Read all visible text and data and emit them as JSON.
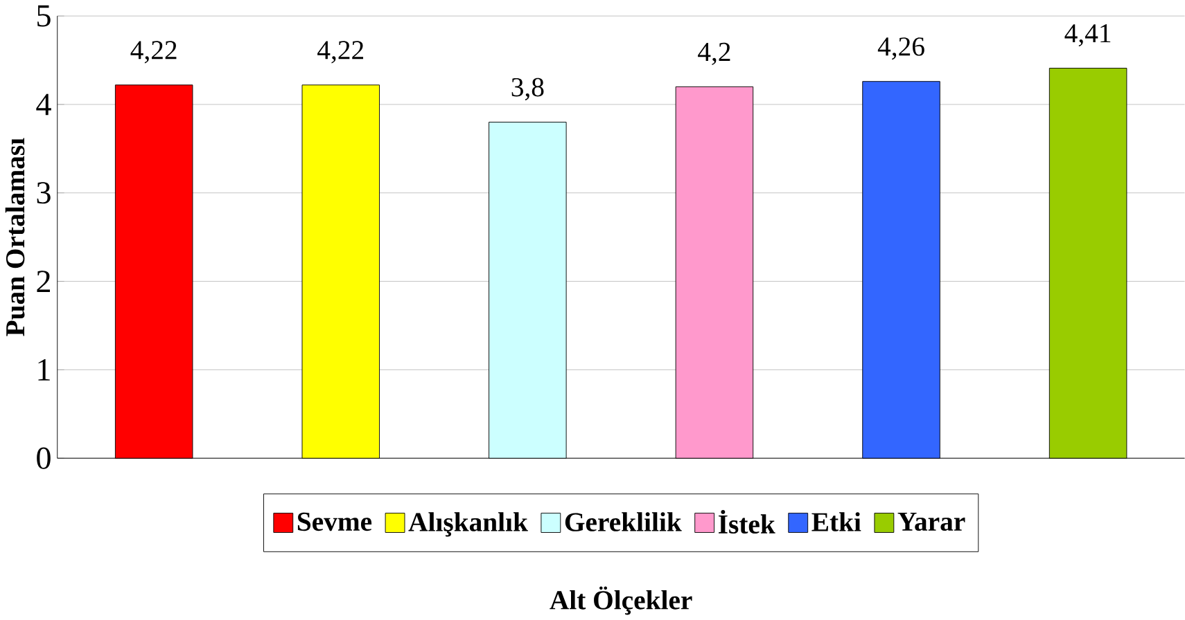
{
  "chart_data": {
    "type": "bar",
    "xlabel": "Alt Ölçekler",
    "ylabel": "Puan Ortalaması",
    "categories": [
      null
    ],
    "series": [
      {
        "name": "Sevme",
        "color": "#ff0000",
        "values": [
          4.22
        ],
        "value_labels": [
          "4,22"
        ]
      },
      {
        "name": "Alışkanlık",
        "color": "#ffff00",
        "values": [
          4.22
        ],
        "value_labels": [
          "4,22"
        ]
      },
      {
        "name": "Gereklilik",
        "color": "#ccffff",
        "values": [
          3.8
        ],
        "value_labels": [
          "3,8"
        ]
      },
      {
        "name": "İstek",
        "color": "#ff99cc",
        "values": [
          4.2
        ],
        "value_labels": [
          "4,2"
        ]
      },
      {
        "name": "Etki",
        "color": "#3366ff",
        "values": [
          4.26
        ],
        "value_labels": [
          "4,26"
        ]
      },
      {
        "name": "Yarar",
        "color": "#99cc00",
        "values": [
          4.41
        ],
        "value_labels": [
          "4,41"
        ]
      }
    ],
    "ylim": [
      0,
      5
    ],
    "yticks": [
      0,
      1,
      2,
      3,
      4,
      5
    ],
    "grid": "y",
    "legend": "bottom"
  }
}
